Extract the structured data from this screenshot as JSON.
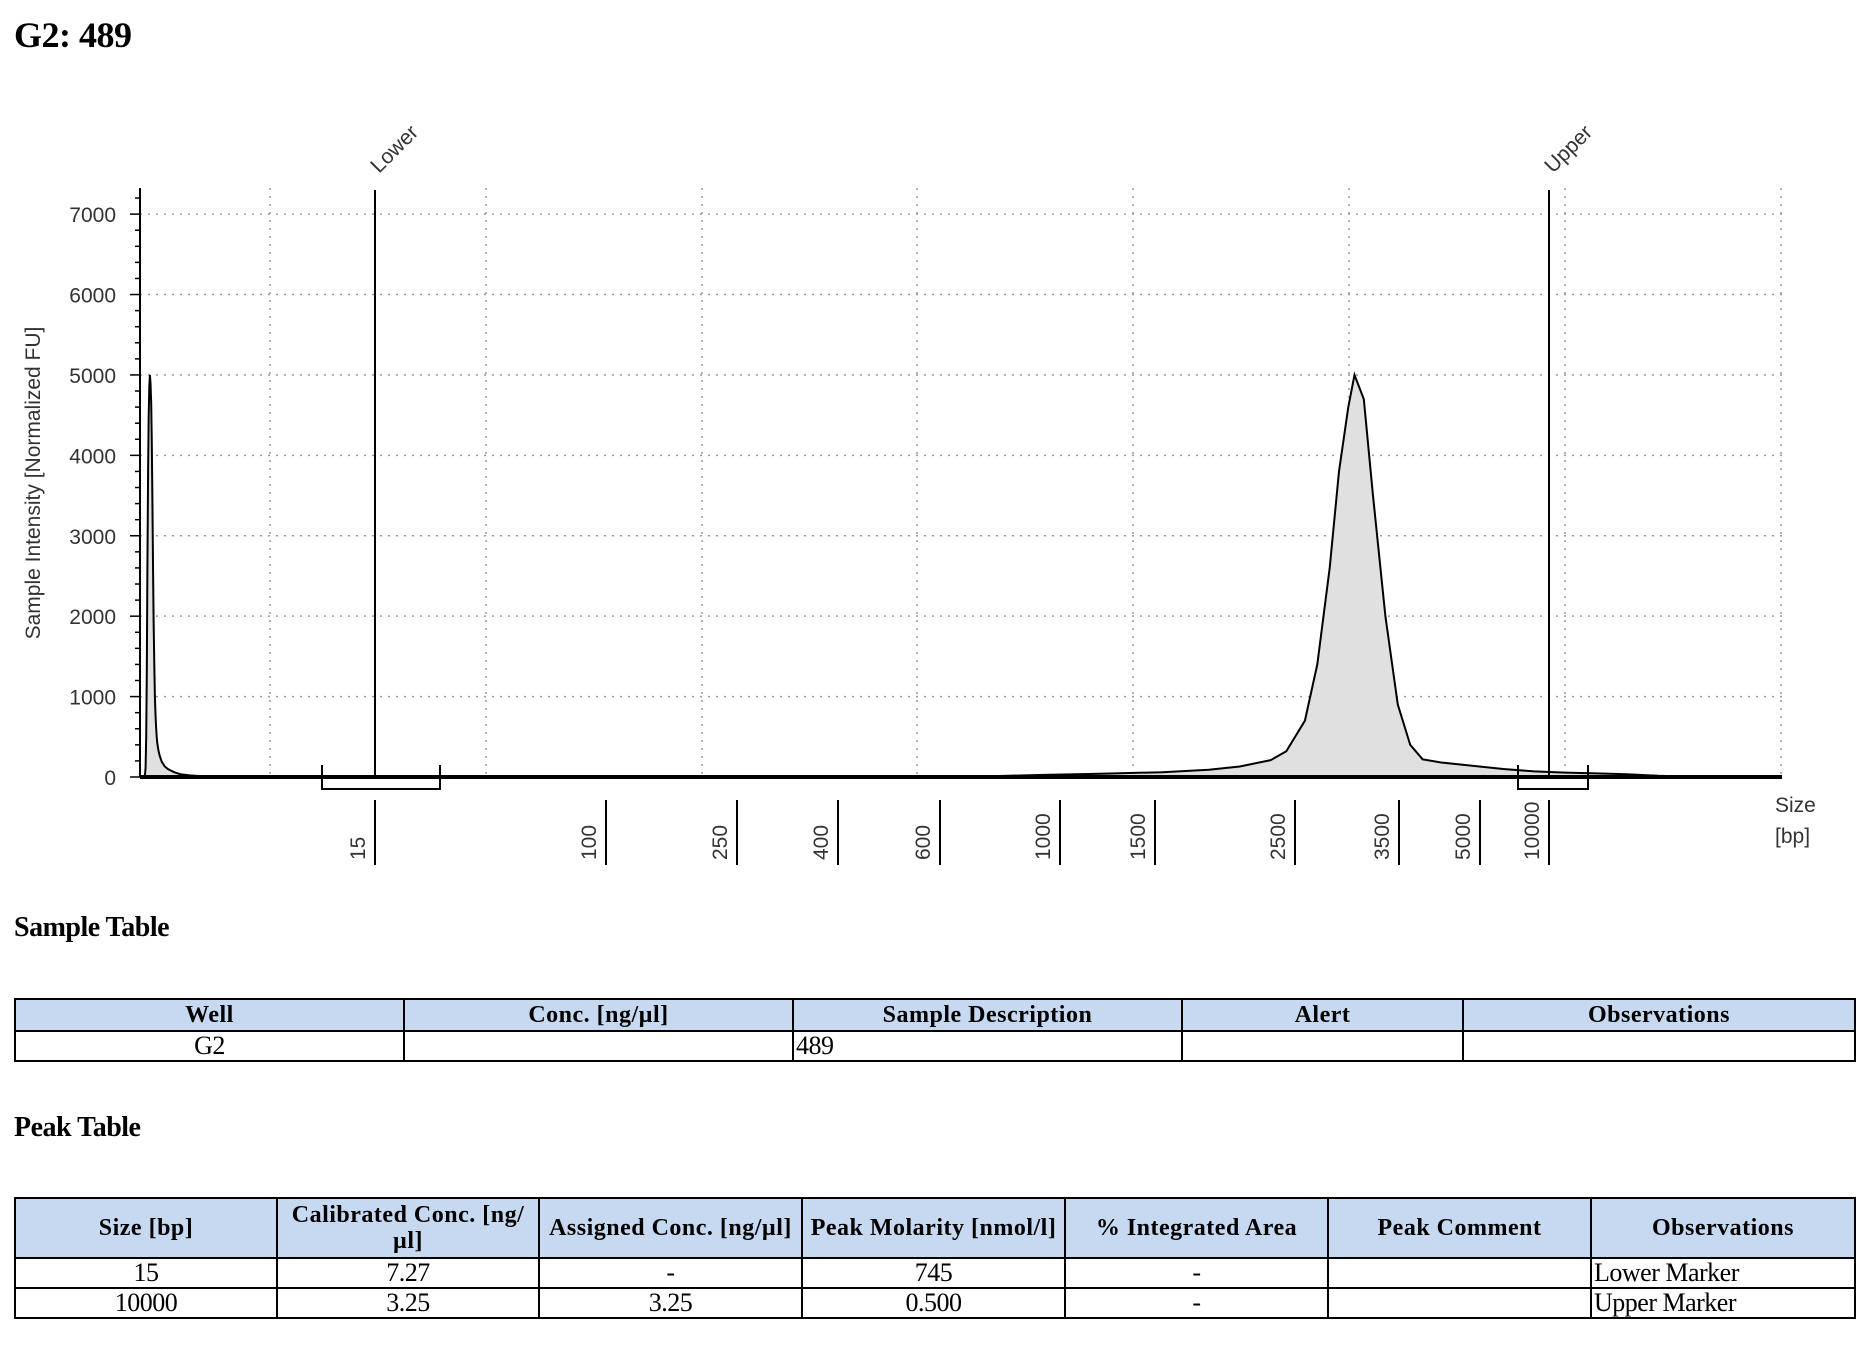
{
  "page": {
    "title": "G2: 489"
  },
  "chart_data": {
    "type": "area",
    "ylabel": "Sample Intensity [Normalized FU]",
    "xlabel_line1": "Size",
    "xlabel_line2": "[bp]",
    "ylim": [
      0,
      7300
    ],
    "y_ticks": [
      0,
      1000,
      2000,
      3000,
      4000,
      5000,
      6000,
      7000
    ],
    "ladder": [
      "15",
      "100",
      "250",
      "400",
      "600",
      "1000",
      "1500",
      "2500",
      "3500",
      "5000",
      "10000"
    ],
    "grid": true,
    "fill_color": "#e0e0e0",
    "line_color": "#000000",
    "markers": [
      {
        "label": "Lower",
        "size_bp": 15,
        "height": 7300
      },
      {
        "label": "Upper",
        "size_bp": 10000,
        "height": 7300
      }
    ],
    "series": [
      {
        "points": [
          [
            0,
            0
          ],
          [
            5,
            2
          ],
          [
            10,
            5
          ],
          [
            14,
            10
          ],
          [
            16,
            30
          ],
          [
            18,
            120
          ],
          [
            20,
            500
          ],
          [
            22,
            1300
          ],
          [
            24,
            2600
          ],
          [
            26,
            3800
          ],
          [
            28,
            4500
          ],
          [
            30,
            4850
          ],
          [
            32,
            5000
          ],
          [
            34,
            4900
          ],
          [
            36,
            4650
          ],
          [
            38,
            4150
          ],
          [
            40,
            3450
          ],
          [
            42,
            2650
          ],
          [
            44,
            1950
          ],
          [
            46,
            1400
          ],
          [
            48,
            1000
          ],
          [
            50,
            780
          ],
          [
            52,
            620
          ],
          [
            54,
            500
          ],
          [
            56,
            420
          ],
          [
            60,
            320
          ],
          [
            64,
            260
          ],
          [
            70,
            190
          ],
          [
            80,
            130
          ],
          [
            90,
            100
          ],
          [
            100,
            80
          ],
          [
            110,
            60
          ],
          [
            130,
            35
          ],
          [
            160,
            20
          ],
          [
            200,
            10
          ],
          [
            300,
            5
          ],
          [
            600,
            3
          ],
          [
            1200,
            3
          ],
          [
            2000,
            3
          ],
          [
            2700,
            5
          ],
          [
            2900,
            25
          ],
          [
            3100,
            40
          ],
          [
            3300,
            60
          ],
          [
            3450,
            90
          ],
          [
            3550,
            130
          ],
          [
            3650,
            210
          ],
          [
            3700,
            320
          ],
          [
            3760,
            700
          ],
          [
            3800,
            1400
          ],
          [
            3840,
            2600
          ],
          [
            3870,
            3800
          ],
          [
            3900,
            4600
          ],
          [
            3920,
            5000
          ],
          [
            3950,
            4700
          ],
          [
            3980,
            3500
          ],
          [
            4020,
            2000
          ],
          [
            4060,
            900
          ],
          [
            4100,
            400
          ],
          [
            4140,
            220
          ],
          [
            4200,
            180
          ],
          [
            4300,
            140
          ],
          [
            4400,
            100
          ],
          [
            4500,
            70
          ],
          [
            4600,
            55
          ],
          [
            4700,
            45
          ],
          [
            4800,
            35
          ],
          [
            4900,
            15
          ],
          [
            5000,
            5
          ],
          [
            5200,
            0
          ]
        ]
      }
    ]
  },
  "sample_table": {
    "title": "Sample Table",
    "headers": [
      "Well",
      "Conc. [ng/µl]",
      "Sample Description",
      "Alert",
      "Observations"
    ],
    "rows": [
      [
        "G2",
        "",
        "489",
        "",
        ""
      ]
    ]
  },
  "peak_table": {
    "title": "Peak Table",
    "headers": [
      "Size [bp]",
      "Calibrated Conc. [ng/µl]",
      "Assigned Conc. [ng/µl]",
      "Peak Molarity [nmol/l]",
      "% Integrated Area",
      "Peak Comment",
      "Observations"
    ],
    "rows": [
      [
        "15",
        "7.27",
        "-",
        "745",
        "-",
        "",
        "Lower Marker"
      ],
      [
        "10000",
        "3.25",
        "3.25",
        "0.500",
        "-",
        "",
        "Upper Marker"
      ]
    ]
  }
}
